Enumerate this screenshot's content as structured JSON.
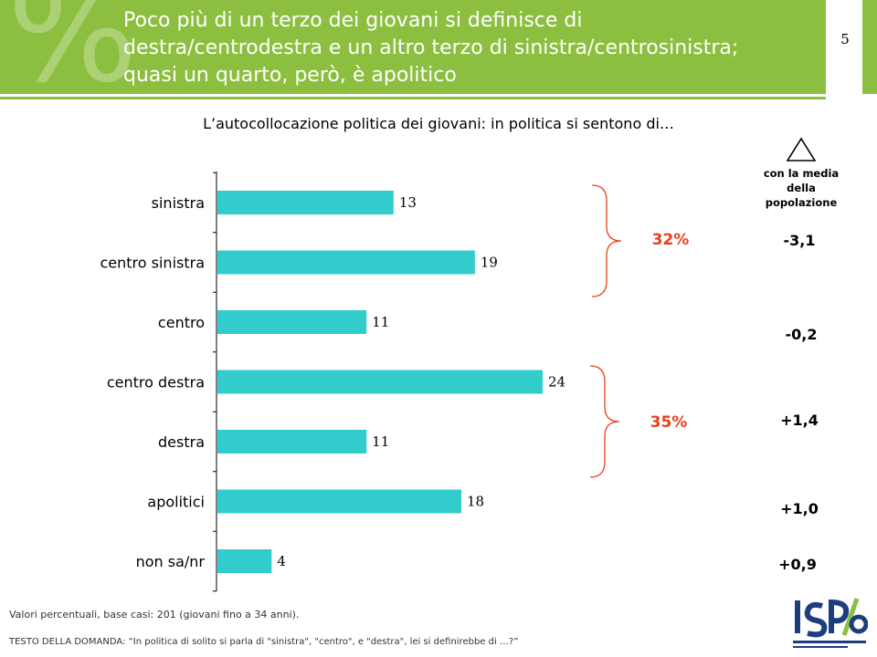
{
  "header": {
    "title": "Poco più di un terzo dei giovani si definisce di\ndestra/centrodestra e un altro terzo di sinistra/centrosinistra;\nquasi un quarto, però, è apolitico",
    "watermark": "%",
    "page_number": "5"
  },
  "colors": {
    "header_green": "#8cbf3f",
    "bar": "#33cccc",
    "accent_red": "#e8401c"
  },
  "chart_data": {
    "type": "bar",
    "orientation": "horizontal",
    "title": "L’autocollocazione politica dei giovani: in politica si sentono di…",
    "categories": [
      "sinistra",
      "centro sinistra",
      "centro",
      "centro destra",
      "destra",
      "apolitici",
      "non sa/nr"
    ],
    "values": [
      13,
      19,
      11,
      24,
      11,
      18,
      4
    ],
    "xlim": [
      0,
      24
    ],
    "grid": false,
    "groups": [
      {
        "label": "32%",
        "categories": [
          "sinistra",
          "centro sinistra"
        ]
      },
      {
        "label": "35%",
        "categories": [
          "centro destra",
          "destra"
        ]
      }
    ],
    "delta_header": "con la media\ndella\npopolazione",
    "deltas": [
      "-3,1",
      "-0,2",
      "+1,4",
      "+1,0",
      "+0,9"
    ]
  },
  "footnote": "Valori percentuali, base casi: 201 (giovani fino a 34 anni).",
  "question": "TESTO DELLA DOMANDA: “In politica di solito si parla di \"sinistra\", \"centro\", e \"destra\",  lei si definirebbe di …?”",
  "logo": {
    "text": "ISPO",
    "icon": "ispo-logo-icon"
  }
}
